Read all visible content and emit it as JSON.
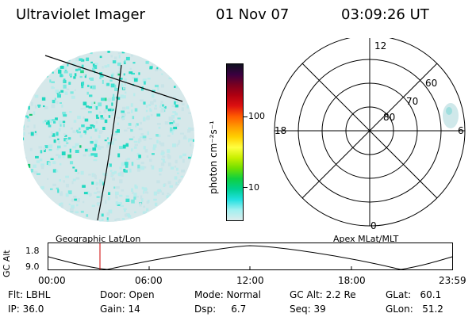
{
  "header": {
    "title": "Ultraviolet Imager",
    "date": "01 Nov 07",
    "time": "03:09:26 UT"
  },
  "colorbar": {
    "unit_label": "photon cm⁻²s⁻¹",
    "ticks": [
      "100",
      "10"
    ],
    "colors": [
      "#101020",
      "#3a0040",
      "#7a0020",
      "#b00010",
      "#dd1010",
      "#ff5a00",
      "#ff9a00",
      "#ffd000",
      "#ffff40",
      "#c8f000",
      "#70e000",
      "#10d040",
      "#00d090",
      "#20e0e0",
      "#a0f0f0",
      "#dcecec"
    ]
  },
  "polar_plot": {
    "mlt_labels": [
      "12",
      "18",
      "6",
      "0"
    ],
    "lat_labels": [
      "60",
      "70",
      "80"
    ]
  },
  "timeline": {
    "left_label": "Geographic Lat/Lon",
    "right_label": "Apex MLat/MLT",
    "axis_label": "GC Alt",
    "y_ticks": [
      "9.0",
      "1.8"
    ],
    "x_ticks": [
      "00:00",
      "06:00",
      "12:00",
      "18:00",
      "23:59"
    ]
  },
  "status": {
    "flt": "Flt: LBHL",
    "ip": "IP: 36.0",
    "door": "Door: Open",
    "gain": "Gain: 14",
    "mode": "Mode: Normal",
    "dsp": "Dsp:     6.7",
    "gc_alt": "GC Alt: 2.2 Re",
    "seq": "Seq: 39",
    "glat": "GLat:   60.1",
    "glon": "GLon:   51.2"
  }
}
